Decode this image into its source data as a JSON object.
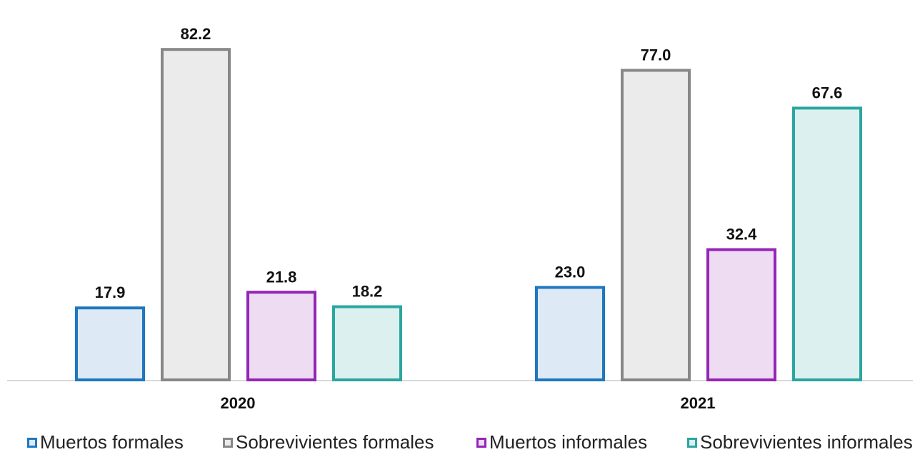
{
  "chart_data": {
    "type": "bar",
    "categories": [
      "2020",
      "2021"
    ],
    "series": [
      {
        "name": "Muertos formales",
        "values": [
          17.9,
          23.0
        ],
        "labels": [
          "17.9",
          "23.0"
        ],
        "stroke": "#1f77c0",
        "fill": "#dde9f5"
      },
      {
        "name": "Sobrevivientes formales",
        "values": [
          82.2,
          77.0
        ],
        "labels": [
          "82.2",
          "77.0"
        ],
        "stroke": "#878787",
        "fill": "#ebebeb"
      },
      {
        "name": "Muertos informales",
        "values": [
          21.8,
          32.4
        ],
        "labels": [
          "21.8",
          "32.4"
        ],
        "stroke": "#9524b8",
        "fill": "#eddcf2"
      },
      {
        "name": "Sobrevivientes informales",
        "values": [
          18.2,
          67.6
        ],
        "labels": [
          "18.2",
          "67.6"
        ],
        "stroke": "#2aa6a1",
        "fill": "#dcf0ef"
      }
    ],
    "ylim": [
      0,
      100
    ],
    "grid": false,
    "legend_position": "bottom"
  }
}
